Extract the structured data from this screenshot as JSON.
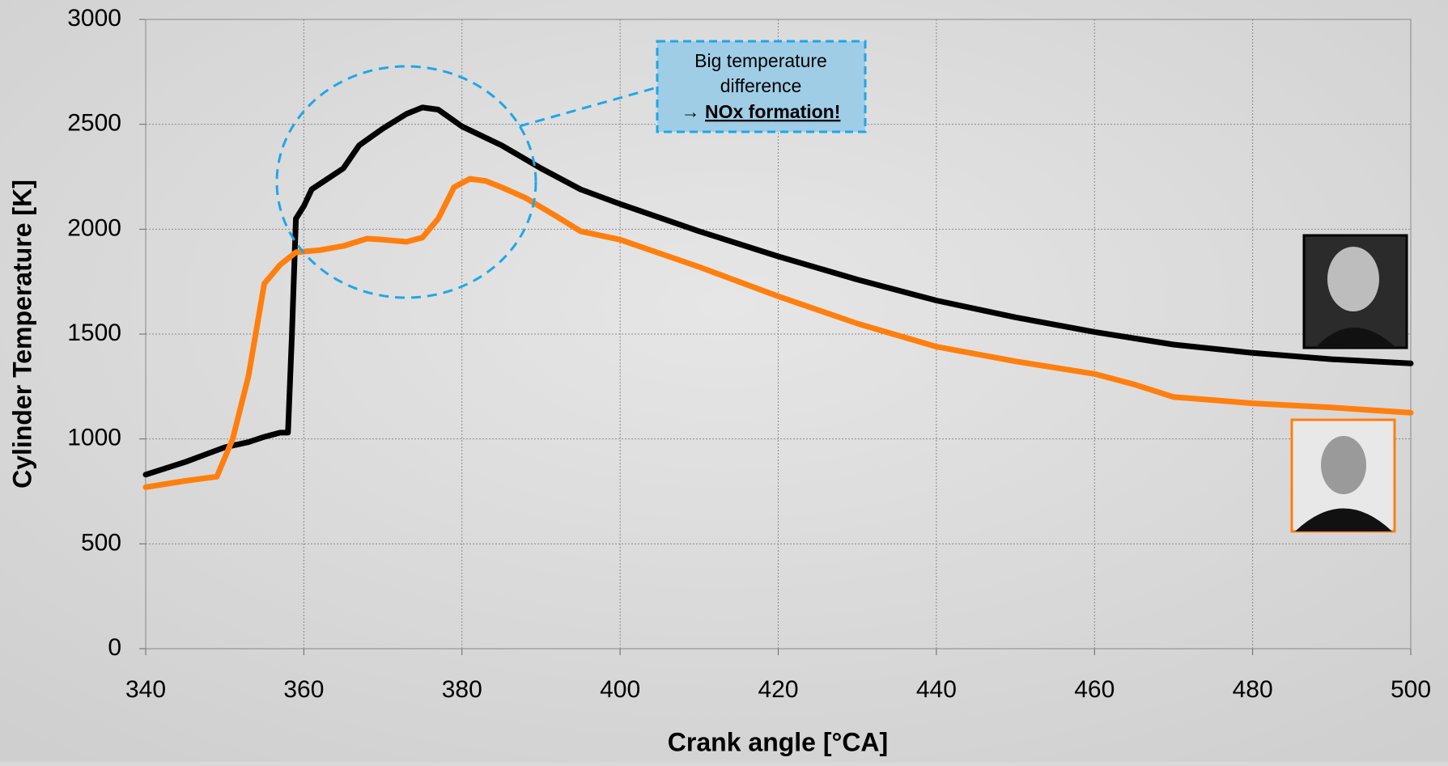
{
  "chart_data": {
    "type": "line",
    "x_label": "Crank angle [°CA]",
    "y_label": "Cylinder Temperature  [K]",
    "xlim": [
      340,
      500
    ],
    "xticks": [
      340,
      360,
      380,
      400,
      420,
      440,
      460,
      480,
      500
    ],
    "ylim": [
      0,
      3000
    ],
    "yticks": [
      0,
      500,
      1000,
      1500,
      2000,
      2500,
      3000
    ],
    "grid": true,
    "annotation": {
      "lines": [
        "Big temperature",
        "difference"
      ],
      "arrow": "→",
      "conclusion": "NOx formation!"
    },
    "series": [
      {
        "color": "#000000",
        "x": [
          340,
          345,
          350,
          353,
          355,
          357,
          358,
          358.5,
          359,
          360,
          361,
          363,
          365,
          367,
          370,
          373,
          375,
          377,
          380,
          385,
          390,
          395,
          400,
          410,
          420,
          430,
          440,
          450,
          460,
          470,
          480,
          490,
          500
        ],
        "values": [
          830,
          890,
          960,
          985,
          1010,
          1030,
          1030,
          1500,
          2050,
          2110,
          2190,
          2240,
          2290,
          2400,
          2480,
          2550,
          2580,
          2570,
          2490,
          2400,
          2290,
          2190,
          2120,
          1990,
          1870,
          1760,
          1660,
          1580,
          1510,
          1450,
          1410,
          1380,
          1360
        ]
      },
      {
        "color": "#ff7f0e",
        "x": [
          340,
          345,
          349,
          351,
          353,
          355,
          357,
          359,
          362,
          365,
          368,
          370,
          373,
          375,
          377,
          379,
          381,
          383,
          385,
          388,
          392,
          395,
          400,
          410,
          420,
          430,
          440,
          450,
          460,
          465,
          470,
          480,
          490,
          500
        ],
        "values": [
          770,
          800,
          820,
          1000,
          1300,
          1740,
          1830,
          1890,
          1900,
          1920,
          1955,
          1950,
          1940,
          1960,
          2050,
          2200,
          2240,
          2230,
          2200,
          2150,
          2060,
          1990,
          1950,
          1820,
          1680,
          1550,
          1440,
          1370,
          1310,
          1260,
          1200,
          1170,
          1150,
          1125
        ]
      }
    ]
  }
}
